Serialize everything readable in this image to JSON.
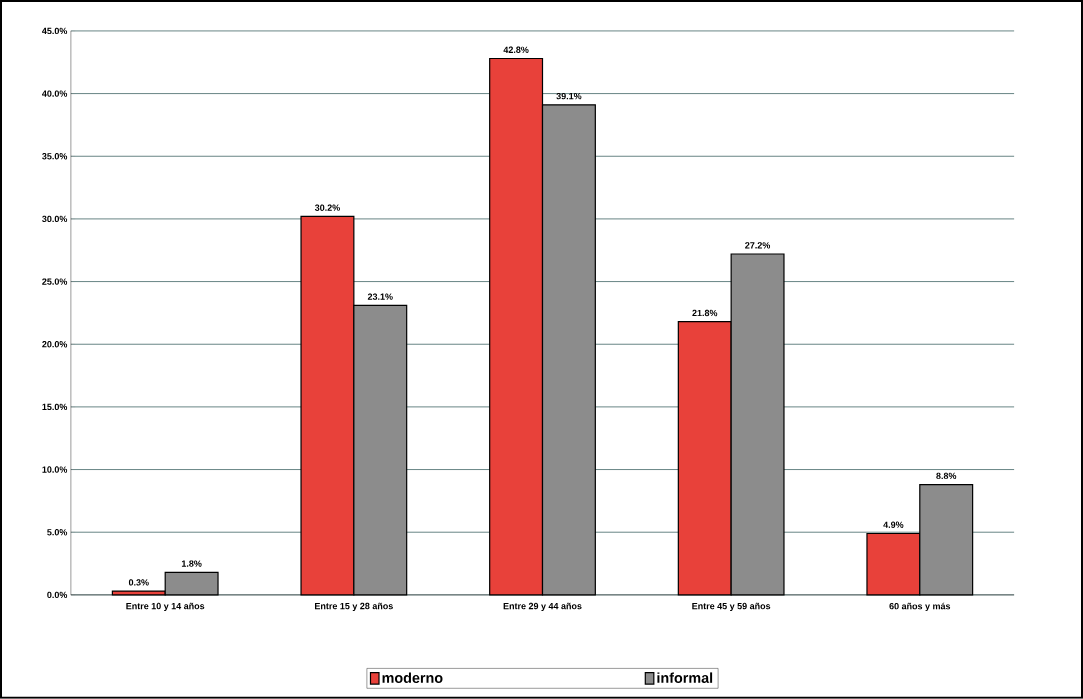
{
  "chart_data": {
    "type": "bar",
    "categories": [
      "Entre 10 y 14 años",
      "Entre 15 y 28 años",
      "Entre 29 y 44 años",
      "Entre 45 y 59 años",
      "60 años y más"
    ],
    "series": [
      {
        "name": "moderno",
        "color": "#e8413a",
        "values": [
          0.3,
          30.2,
          42.8,
          21.8,
          4.9
        ],
        "value_labels": [
          "0.3%",
          "30.2%",
          "42.8%",
          "21.8%",
          "4.9%"
        ]
      },
      {
        "name": "informal",
        "color": "#8c8c8c",
        "values": [
          1.8,
          23.1,
          39.1,
          27.2,
          8.8
        ],
        "value_labels": [
          "1.8%",
          "23.1%",
          "39.1%",
          "27.2%",
          "8.8%"
        ]
      }
    ],
    "ylim": [
      0,
      45
    ],
    "yticks": [
      {
        "value": 0,
        "label": "0.0%"
      },
      {
        "value": 5,
        "label": "5.0%"
      },
      {
        "value": 10,
        "label": "10.0%"
      },
      {
        "value": 15,
        "label": "15.0%"
      },
      {
        "value": 20,
        "label": "20.0%"
      },
      {
        "value": 25,
        "label": "25.0%"
      },
      {
        "value": 30,
        "label": "30.0%"
      },
      {
        "value": 35,
        "label": "35.0%"
      },
      {
        "value": 40,
        "label": "40.0%"
      },
      {
        "value": 45,
        "label": "45.0%"
      }
    ],
    "grid": "y",
    "legend": "bottom"
  }
}
